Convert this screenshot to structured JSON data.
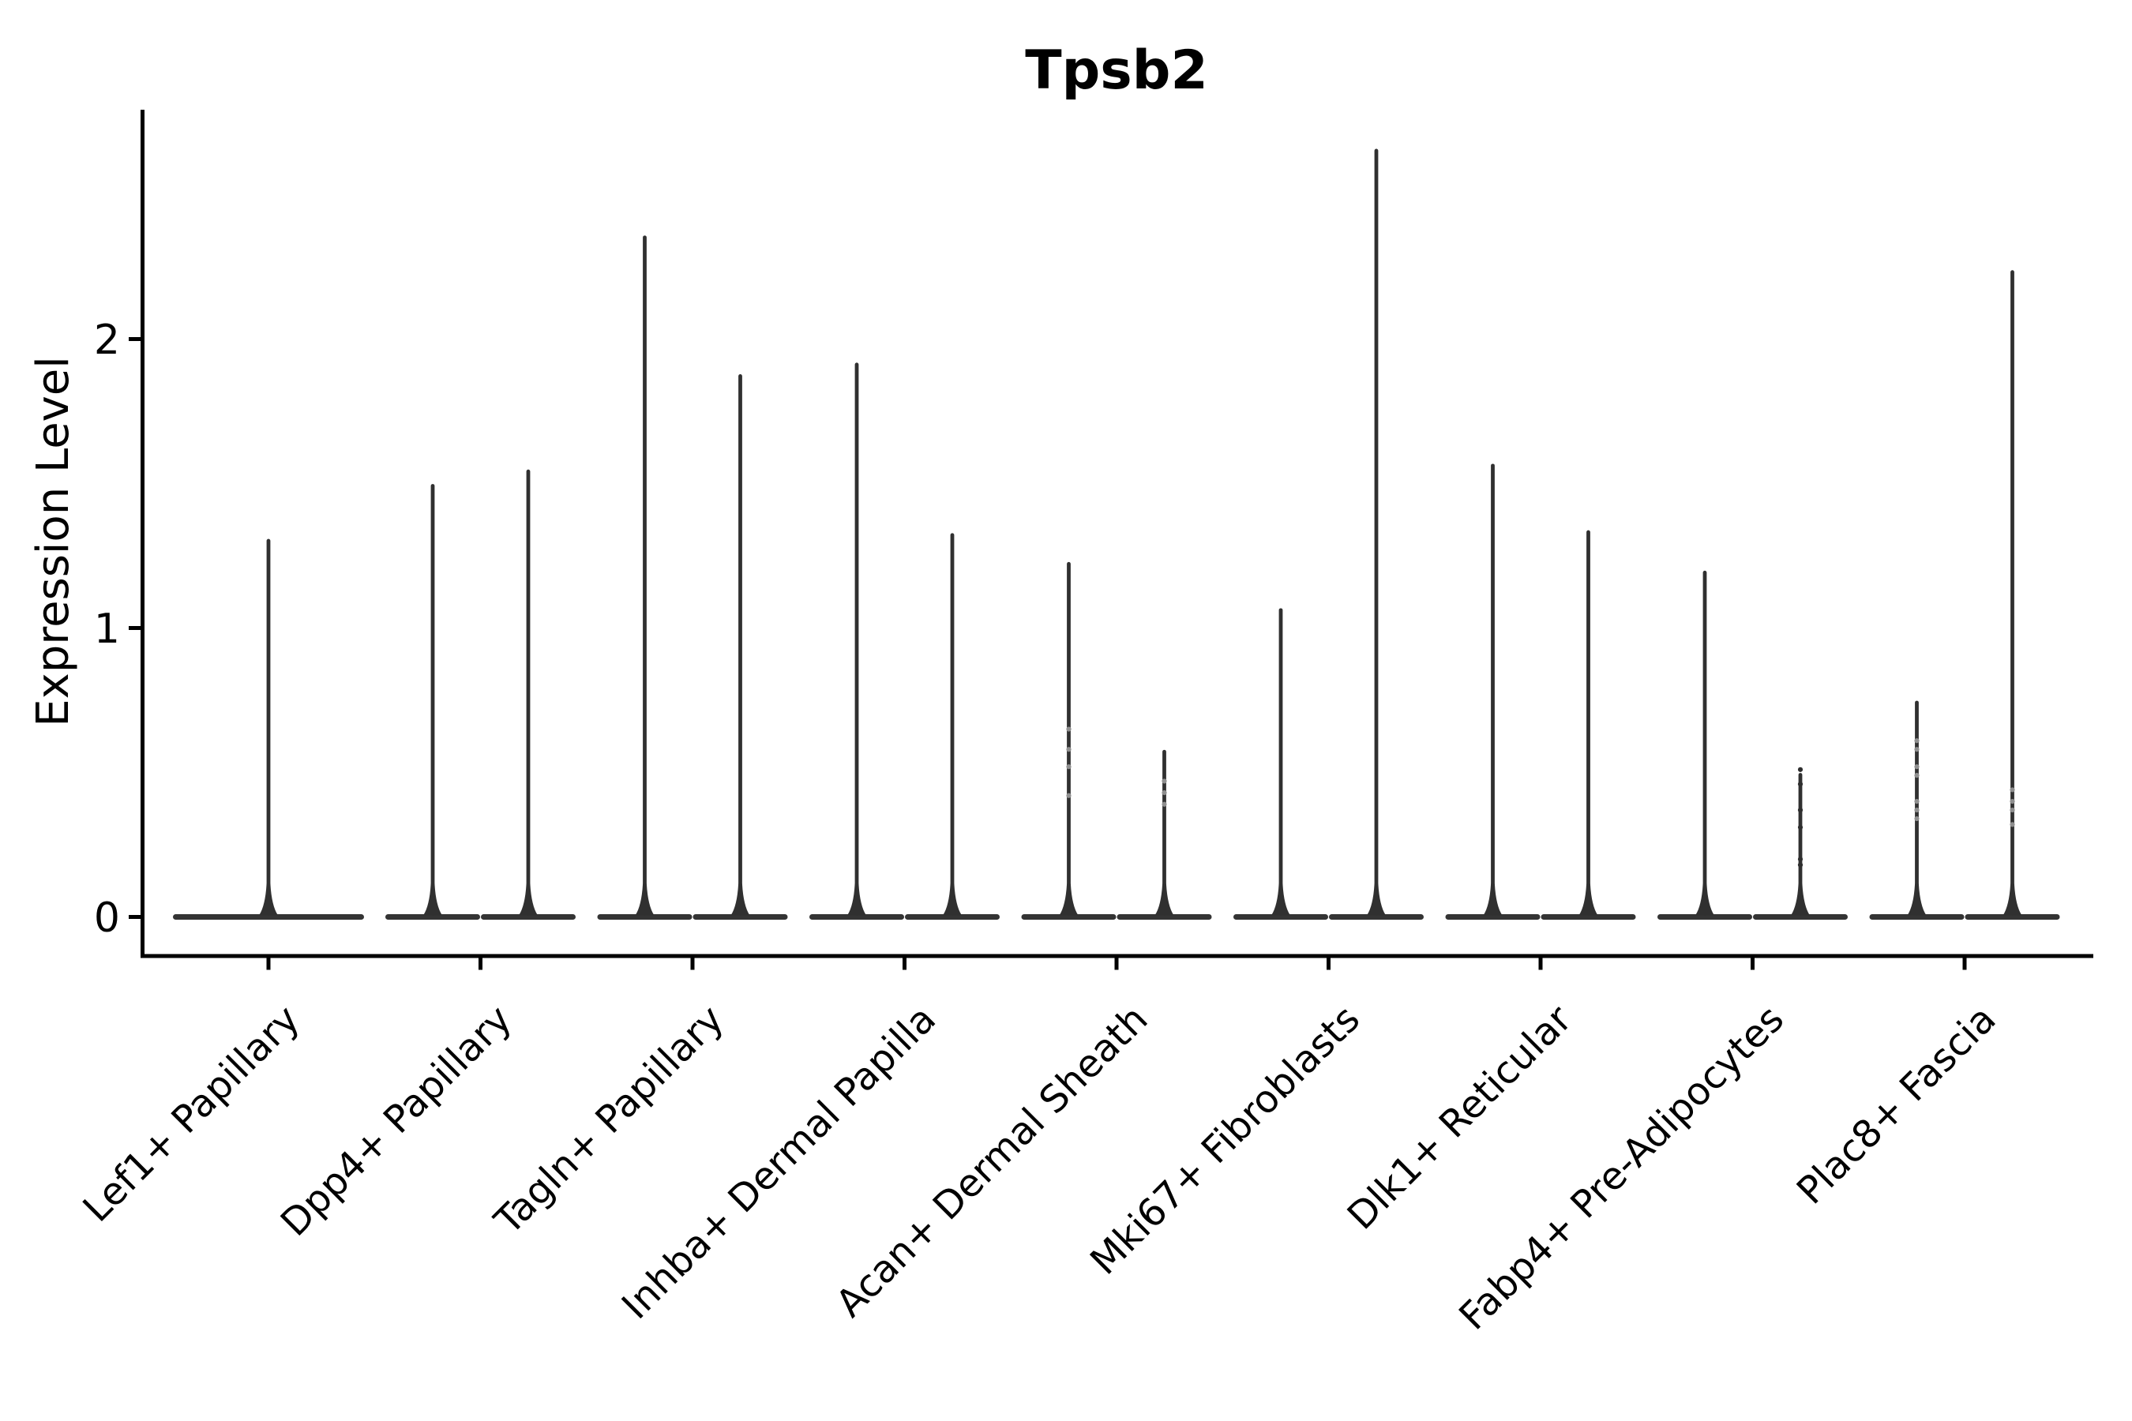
{
  "title": "Tpsb2",
  "ylabel": "Expression Level",
  "colors": {
    "violin": "#303030",
    "violin_base": "#343434",
    "axis": "#000000",
    "text": "#000000",
    "point_faint": "#8f8f8f",
    "point_dark": "#2e2e2e",
    "background": "#ffffff"
  },
  "chart_data": {
    "type": "violin",
    "title": "Tpsb2",
    "xlabel": "",
    "ylabel": "Expression Level",
    "y_ticks": [
      0,
      1,
      2
    ],
    "y_tick_labels": [
      "0",
      "1",
      "2"
    ],
    "ylim": [
      -0.135,
      2.79
    ],
    "grid": false,
    "legend": "none",
    "categories": [
      "Lef1+ Papillary",
      "Dpp4+ Papillary",
      "Tagln+ Papillary",
      "Inhba+ Dermal Papilla",
      "Acan+ Dermal Sheath",
      "Mki67+ Fibroblasts",
      "Dlk1+ Reticular",
      "Fabp4+ Pre-Adipocytes",
      "Plac8+ Fascia"
    ],
    "description": "Violin plot of Tpsb2 expression; each cluster shows flat density mass at 0 with a thin spike to its maximum expressing cells. Categories 2-9 contain two dodged violins; category 1 contains one full-width violin.",
    "groups": [
      {
        "label": "Lef1+ Papillary",
        "violins": [
          {
            "max": 1.31,
            "points": [],
            "point_shade": "faint"
          }
        ]
      },
      {
        "label": "Dpp4+ Papillary",
        "violins": [
          {
            "max": 1.5,
            "points": [],
            "point_shade": "faint"
          },
          {
            "max": 1.55,
            "points": [],
            "point_shade": "faint"
          }
        ]
      },
      {
        "label": "Tagln+ Papillary",
        "violins": [
          {
            "max": 2.36,
            "points": [],
            "point_shade": "faint"
          },
          {
            "max": 1.88,
            "points": [],
            "point_shade": "faint"
          }
        ]
      },
      {
        "label": "Inhba+ Dermal Papilla",
        "violins": [
          {
            "max": 1.92,
            "points": [],
            "point_shade": "faint"
          },
          {
            "max": 1.33,
            "points": [],
            "point_shade": "faint"
          }
        ]
      },
      {
        "label": "Acan+ Dermal Sheath",
        "violins": [
          {
            "max": 1.23,
            "points": [
              0.65,
              0.58,
              0.52,
              0.42
            ],
            "point_shade": "faint"
          },
          {
            "max": 0.58,
            "points": [
              0.47,
              0.43,
              0.39
            ],
            "point_shade": "faint"
          }
        ]
      },
      {
        "label": "Mki67+ Fibroblasts",
        "violins": [
          {
            "max": 1.07,
            "points": [],
            "point_shade": "faint"
          },
          {
            "max": 2.66,
            "points": [],
            "point_shade": "faint"
          }
        ]
      },
      {
        "label": "Dlk1+ Reticular",
        "violins": [
          {
            "max": 1.57,
            "points": [],
            "point_shade": "faint"
          },
          {
            "max": 1.34,
            "points": [],
            "point_shade": "faint"
          }
        ]
      },
      {
        "label": "Fabp4+ Pre-Adipocytes",
        "violins": [
          {
            "max": 1.2,
            "points": [],
            "point_shade": "faint"
          },
          {
            "max": 0.5,
            "points": [
              0.51,
              0.46,
              0.37,
              0.31,
              0.2,
              0.18
            ],
            "point_shade": "dark"
          }
        ]
      },
      {
        "label": "Plac8+ Fascia",
        "violins": [
          {
            "max": 0.75,
            "points": [
              0.61,
              0.58,
              0.52,
              0.49,
              0.4,
              0.37,
              0.34
            ],
            "point_shade": "faint"
          },
          {
            "max": 2.24,
            "points": [
              0.44,
              0.4,
              0.37,
              0.32
            ],
            "point_shade": "faint"
          }
        ]
      }
    ]
  }
}
